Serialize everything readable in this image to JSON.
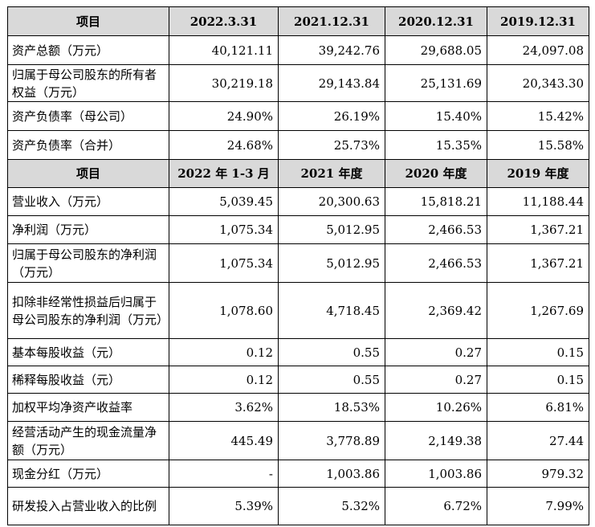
{
  "section1": {
    "headers": [
      "项目",
      "2022.3.31",
      "2021.12.31",
      "2020.12.31",
      "2019.12.31"
    ],
    "rows": [
      {
        "label": "资产总额（万元）",
        "values": [
          "40,121.11",
          "39,242.76",
          "29,688.05",
          "24,097.08"
        ]
      },
      {
        "label": "归属于母公司股东的所有者权益（万元）",
        "values": [
          "30,219.18",
          "29,143.84",
          "25,131.69",
          "20,343.30"
        ]
      },
      {
        "label": "资产负债率（母公司）",
        "values": [
          "24.90%",
          "26.19%",
          "15.40%",
          "15.42%"
        ]
      },
      {
        "label": "资产负债率（合并）",
        "values": [
          "24.68%",
          "25.73%",
          "15.35%",
          "15.58%"
        ]
      }
    ]
  },
  "section2": {
    "headers": [
      "项目",
      "2022 年 1-3 月",
      "2021 年度",
      "2020 年度",
      "2019 年度"
    ],
    "rows": [
      {
        "label": "营业收入（万元）",
        "values": [
          "5,039.45",
          "20,300.63",
          "15,818.21",
          "11,188.44"
        ]
      },
      {
        "label": "净利润（万元）",
        "values": [
          "1,075.34",
          "5,012.95",
          "2,466.53",
          "1,367.21"
        ]
      },
      {
        "label": "归属于母公司股东的净利润（万元）",
        "values": [
          "1,075.34",
          "5,012.95",
          "2,466.53",
          "1,367.21"
        ]
      },
      {
        "label": "扣除非经常性损益后归属于母公司股东的净利润（万元）",
        "values": [
          "1,078.60",
          "4,718.45",
          "2,369.42",
          "1,267.69"
        ]
      },
      {
        "label": "基本每股收益（元）",
        "values": [
          "0.12",
          "0.55",
          "0.27",
          "0.15"
        ]
      },
      {
        "label": "稀释每股收益（元）",
        "values": [
          "0.12",
          "0.55",
          "0.27",
          "0.15"
        ]
      },
      {
        "label": "加权平均净资产收益率",
        "values": [
          "3.62%",
          "18.53%",
          "10.26%",
          "6.81%"
        ]
      },
      {
        "label": "经营活动产生的现金流量净额（万元）",
        "values": [
          "445.49",
          "3,778.89",
          "2,149.38",
          "27.44"
        ]
      },
      {
        "label": "现金分红（万元）",
        "values": [
          "-",
          "1,003.86",
          "1,003.86",
          "979.32"
        ]
      },
      {
        "label": "研发投入占营业收入的比例",
        "values": [
          "5.39%",
          "5.32%",
          "6.72%",
          "7.99%"
        ]
      }
    ]
  }
}
